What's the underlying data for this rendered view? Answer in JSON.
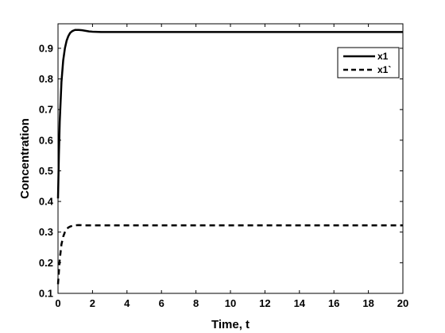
{
  "chart_data": {
    "type": "line",
    "title": "",
    "xlabel": "Time, t",
    "ylabel": "Concentration",
    "xlim": [
      0,
      20
    ],
    "ylim": [
      0.1,
      0.98
    ],
    "xticks": [
      "0",
      "2",
      "4",
      "6",
      "8",
      "10",
      "12",
      "14",
      "16",
      "18",
      "20"
    ],
    "yticks": [
      "0.1",
      "0.2",
      "0.3",
      "0.4",
      "0.5",
      "0.6",
      "0.7",
      "0.8",
      "0.9"
    ],
    "grid": false,
    "legend_position": "top-right",
    "series": [
      {
        "name": "x1",
        "style": "solid",
        "color": "#000000",
        "x": [
          0,
          0.05,
          0.1,
          0.2,
          0.3,
          0.4,
          0.5,
          0.6,
          0.7,
          0.8,
          0.9,
          1.0,
          1.2,
          1.4,
          1.6,
          1.8,
          2.0,
          2.5,
          3,
          4,
          5,
          6,
          8,
          10,
          12,
          14,
          16,
          18,
          20
        ],
        "y": [
          0.41,
          0.55,
          0.66,
          0.79,
          0.86,
          0.9,
          0.925,
          0.94,
          0.95,
          0.955,
          0.958,
          0.96,
          0.96,
          0.959,
          0.957,
          0.955,
          0.954,
          0.953,
          0.953,
          0.953,
          0.953,
          0.953,
          0.953,
          0.953,
          0.953,
          0.953,
          0.953,
          0.953,
          0.953
        ]
      },
      {
        "name": "x1`",
        "style": "dashed",
        "color": "#000000",
        "x": [
          0,
          0.1,
          0.2,
          0.3,
          0.4,
          0.5,
          0.6,
          0.7,
          0.8,
          0.9,
          1.0,
          1.2,
          1.5,
          2,
          3,
          5,
          8,
          10,
          12,
          14,
          16,
          18,
          20
        ],
        "y": [
          0.13,
          0.21,
          0.26,
          0.285,
          0.3,
          0.31,
          0.315,
          0.318,
          0.32,
          0.322,
          0.322,
          0.323,
          0.322,
          0.322,
          0.322,
          0.322,
          0.322,
          0.322,
          0.322,
          0.322,
          0.322,
          0.322,
          0.322
        ]
      }
    ]
  }
}
